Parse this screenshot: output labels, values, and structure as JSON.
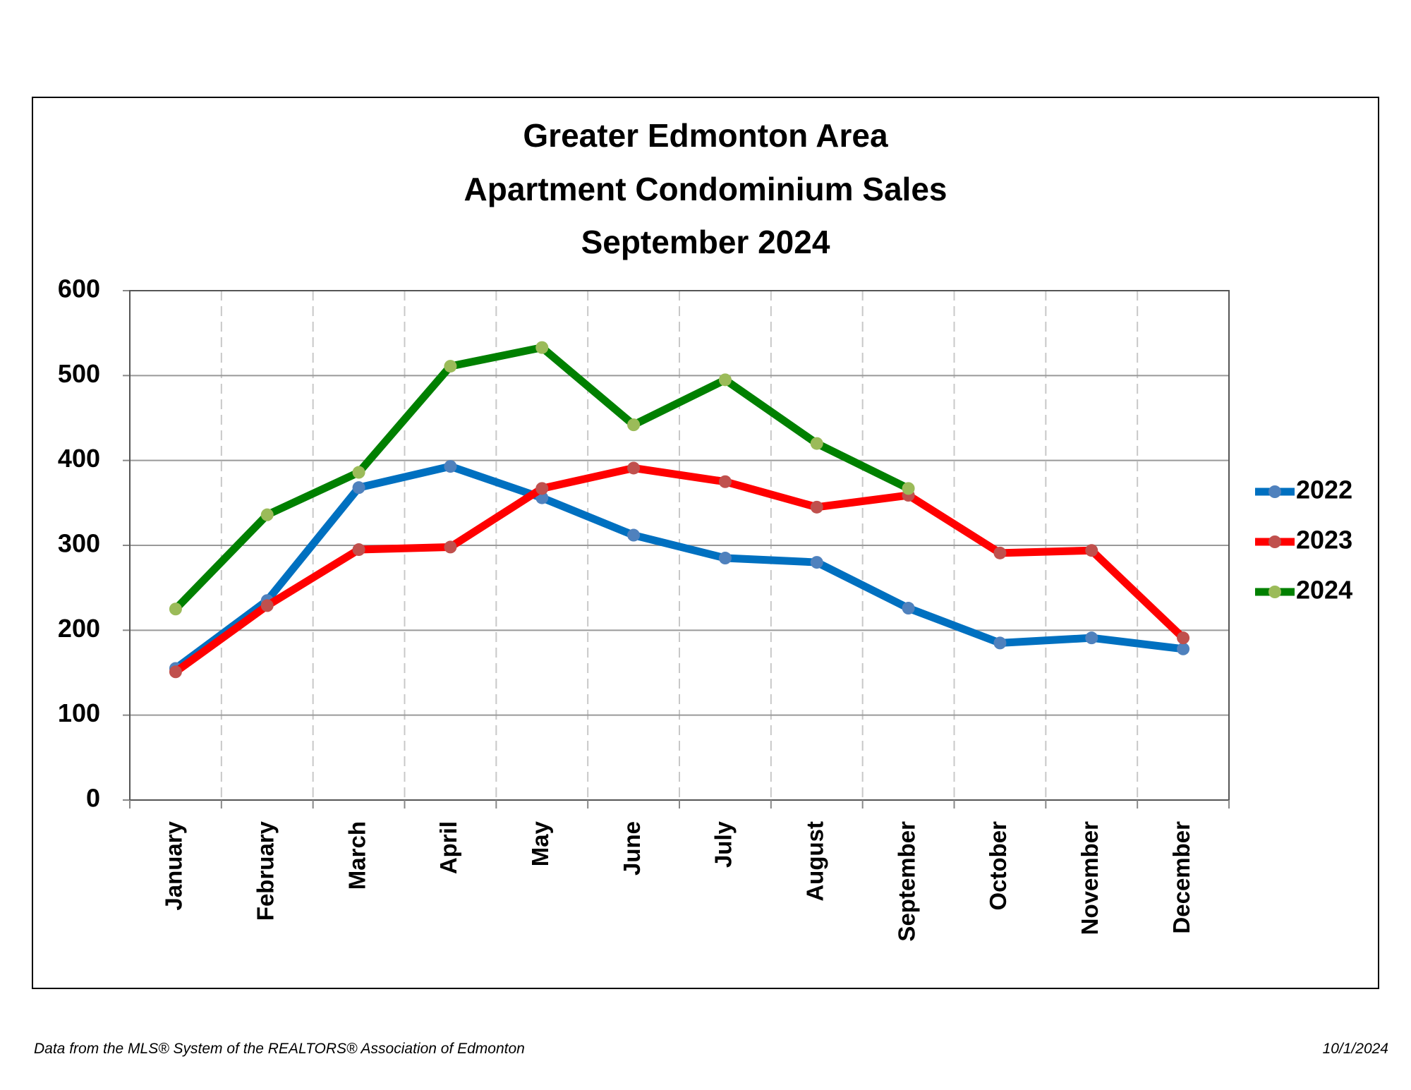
{
  "chart_data": {
    "type": "line",
    "title": [
      "Greater Edmonton Area",
      "Apartment Condominium Sales",
      "September 2024"
    ],
    "categories": [
      "January",
      "February",
      "March",
      "April",
      "May",
      "June",
      "July",
      "August",
      "September",
      "October",
      "November",
      "December"
    ],
    "series": [
      {
        "name": "2022",
        "color": "#0070c0",
        "marker_color": "#4f81bd",
        "values": [
          155,
          235,
          368,
          393,
          356,
          312,
          285,
          280,
          226,
          185,
          191,
          178
        ]
      },
      {
        "name": "2023",
        "color": "#ff0000",
        "marker_color": "#c0504d",
        "values": [
          151,
          229,
          295,
          298,
          367,
          391,
          375,
          345,
          359,
          291,
          294,
          191
        ]
      },
      {
        "name": "2024",
        "color": "#008000",
        "marker_color": "#9bbb59",
        "values": [
          225,
          336,
          386,
          511,
          533,
          442,
          495,
          420,
          367,
          null,
          null,
          null
        ]
      }
    ],
    "ylim": [
      0,
      600
    ],
    "yticks": [
      0,
      100,
      200,
      300,
      400,
      500,
      600
    ],
    "grid": true,
    "legend": "right",
    "source": "Data from the MLS® System of the REALTORS® Association of Edmonton",
    "date": "10/1/2024"
  }
}
